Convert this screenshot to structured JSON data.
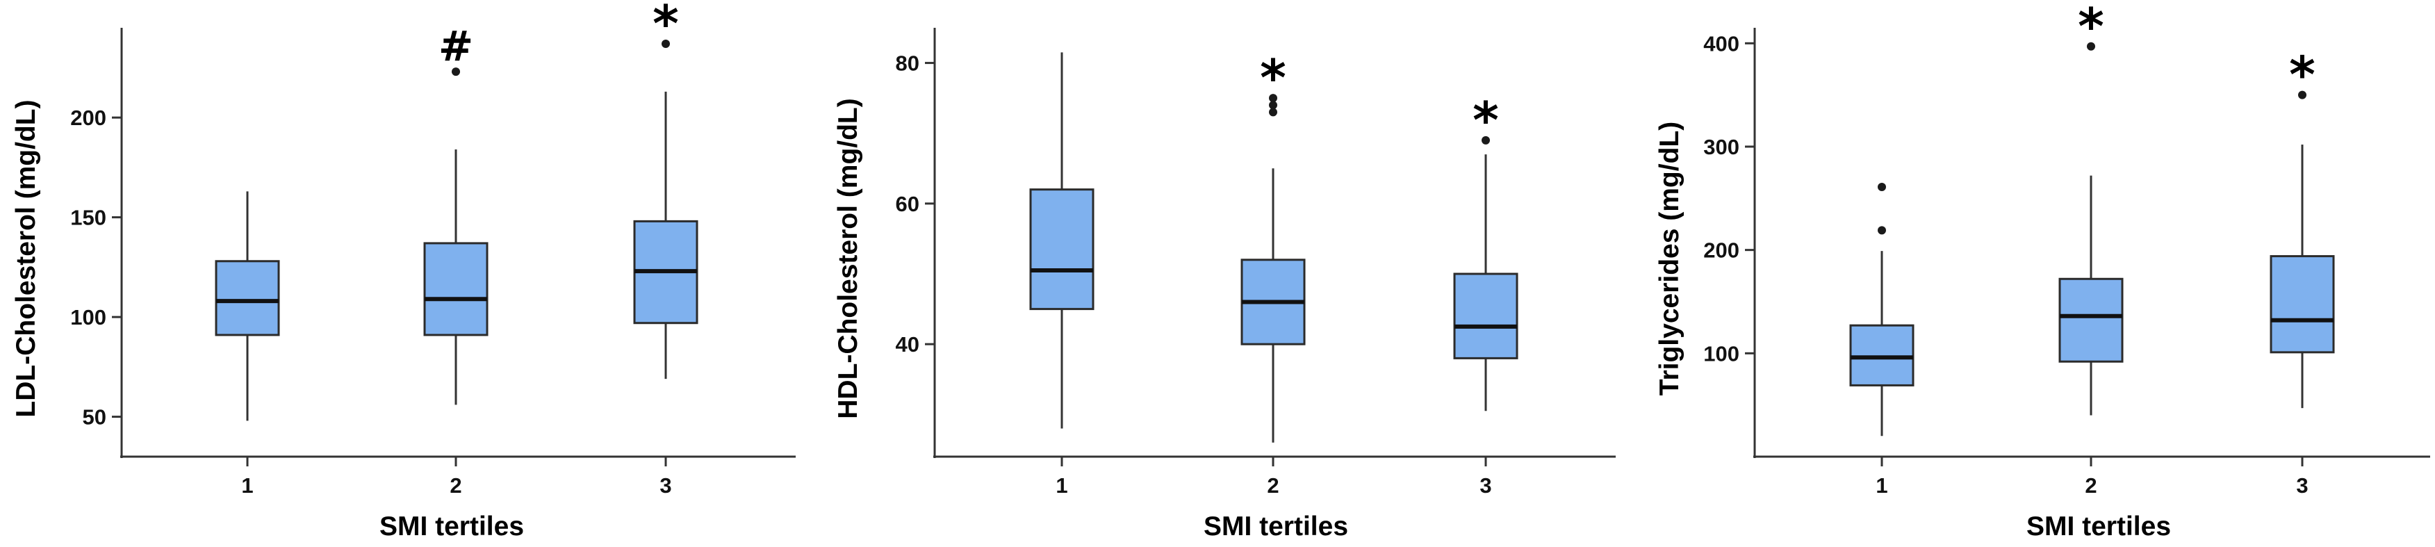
{
  "colors": {
    "box_fill": "#7FB1EE",
    "axis": "#333333",
    "text": "#000000"
  },
  "chart_data": [
    {
      "type": "boxplot",
      "title": "",
      "xlabel": "SMI tertiles",
      "ylabel": "LDL-Cholesterol (mg/dL)",
      "ylim": [
        30,
        245
      ],
      "yticks": [
        50,
        100,
        150,
        200
      ],
      "categories": [
        "1",
        "2",
        "3"
      ],
      "boxes": [
        {
          "category": "1",
          "min": 48,
          "q1": 91,
          "median": 108,
          "q3": 128,
          "max": 163,
          "outliers": [],
          "annotation": ""
        },
        {
          "category": "2",
          "min": 56,
          "q1": 91,
          "median": 109,
          "q3": 137,
          "max": 184,
          "outliers": [
            223
          ],
          "annotation": "#"
        },
        {
          "category": "3",
          "min": 69,
          "q1": 97,
          "median": 123,
          "q3": 148,
          "max": 213,
          "outliers": [
            237
          ],
          "annotation": "*"
        }
      ]
    },
    {
      "type": "boxplot",
      "title": "",
      "xlabel": "SMI tertiles",
      "ylabel": "HDL-Cholesterol (mg/dL)",
      "ylim": [
        24,
        85
      ],
      "yticks": [
        40,
        60,
        80
      ],
      "categories": [
        "1",
        "2",
        "3"
      ],
      "boxes": [
        {
          "category": "1",
          "min": 28,
          "q1": 45,
          "median": 50.5,
          "q3": 62,
          "max": 81.5,
          "outliers": [],
          "annotation": ""
        },
        {
          "category": "2",
          "min": 26,
          "q1": 40,
          "median": 46,
          "q3": 52,
          "max": 65,
          "outliers": [
            73,
            74,
            75
          ],
          "annotation": "*"
        },
        {
          "category": "3",
          "min": 30.5,
          "q1": 38,
          "median": 42.5,
          "q3": 50,
          "max": 67,
          "outliers": [
            69
          ],
          "annotation": "*"
        }
      ]
    },
    {
      "type": "boxplot",
      "title": "",
      "xlabel": "SMI tertiles",
      "ylabel": "Triglycerides (mg/dL)",
      "ylim": [
        0,
        415
      ],
      "yticks": [
        100,
        200,
        300,
        400
      ],
      "categories": [
        "1",
        "2",
        "3"
      ],
      "boxes": [
        {
          "category": "1",
          "min": 20,
          "q1": 69,
          "median": 96,
          "q3": 127,
          "max": 199,
          "outliers": [
            219,
            261
          ],
          "annotation": ""
        },
        {
          "category": "2",
          "min": 40,
          "q1": 92,
          "median": 136,
          "q3": 172,
          "max": 272,
          "outliers": [
            397
          ],
          "annotation": "*"
        },
        {
          "category": "3",
          "min": 47,
          "q1": 101,
          "median": 132,
          "q3": 194,
          "max": 302,
          "outliers": [
            350
          ],
          "annotation": "*"
        }
      ]
    }
  ]
}
